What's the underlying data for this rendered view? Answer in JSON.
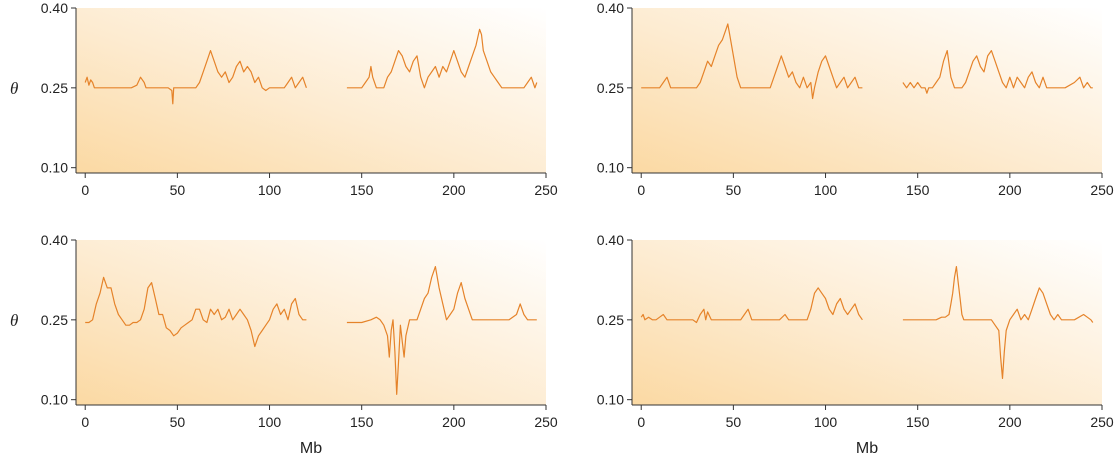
{
  "chart_data": [
    {
      "type": "line",
      "panel": "top-left",
      "xlabel": "",
      "ylabel": "θ",
      "xlim": [
        -5,
        250
      ],
      "ylim": [
        0.09,
        0.4
      ],
      "x_ticks": [
        0,
        50,
        100,
        150,
        200,
        250
      ],
      "x_tick_labels": [
        "0",
        "50",
        "100",
        "150",
        "200",
        "250"
      ],
      "y_ticks": [
        0.1,
        0.25,
        0.4
      ],
      "y_tick_labels": [
        "0.10",
        "0.25",
        "0.40"
      ],
      "series_color": "#e5832a",
      "segments": [
        {
          "x": [
            0,
            1,
            2,
            3,
            4,
            5,
            8,
            10,
            15,
            20,
            25,
            28,
            30,
            32,
            33,
            35,
            38,
            40,
            45,
            47,
            47.5,
            48,
            50,
            55,
            60,
            62,
            64,
            66,
            68,
            70,
            72,
            74,
            76,
            78,
            80,
            82,
            84,
            86,
            88,
            90,
            92,
            94,
            96,
            98,
            100,
            103,
            106,
            108,
            110,
            112,
            114,
            116,
            118,
            120
          ],
          "y": [
            0.26,
            0.27,
            0.255,
            0.265,
            0.26,
            0.25,
            0.25,
            0.25,
            0.25,
            0.25,
            0.25,
            0.255,
            0.27,
            0.26,
            0.25,
            0.25,
            0.25,
            0.25,
            0.25,
            0.245,
            0.22,
            0.25,
            0.25,
            0.25,
            0.25,
            0.26,
            0.28,
            0.3,
            0.32,
            0.3,
            0.28,
            0.27,
            0.28,
            0.26,
            0.27,
            0.29,
            0.3,
            0.28,
            0.29,
            0.28,
            0.26,
            0.27,
            0.25,
            0.245,
            0.25,
            0.25,
            0.25,
            0.25,
            0.26,
            0.27,
            0.25,
            0.26,
            0.27,
            0.25
          ]
        },
        {
          "x": [
            142,
            145,
            148,
            150,
            152,
            154,
            155,
            156,
            158,
            160,
            162,
            164,
            166,
            168,
            170,
            172,
            174,
            176,
            178,
            180,
            182,
            184,
            186,
            188,
            190,
            192,
            194,
            196,
            198,
            200,
            202,
            204,
            206,
            208,
            210,
            212,
            214,
            215,
            216,
            218,
            220,
            222,
            224,
            226,
            230,
            235,
            238,
            240,
            242,
            243,
            244,
            245
          ],
          "y": [
            0.25,
            0.25,
            0.25,
            0.25,
            0.26,
            0.27,
            0.29,
            0.27,
            0.25,
            0.25,
            0.25,
            0.27,
            0.28,
            0.3,
            0.32,
            0.31,
            0.29,
            0.28,
            0.3,
            0.31,
            0.27,
            0.25,
            0.27,
            0.28,
            0.29,
            0.27,
            0.29,
            0.28,
            0.3,
            0.32,
            0.3,
            0.28,
            0.27,
            0.29,
            0.31,
            0.33,
            0.36,
            0.35,
            0.32,
            0.3,
            0.28,
            0.27,
            0.26,
            0.25,
            0.25,
            0.25,
            0.25,
            0.26,
            0.27,
            0.26,
            0.25,
            0.26
          ]
        }
      ]
    },
    {
      "type": "line",
      "panel": "top-right",
      "xlabel": "",
      "ylabel": "",
      "xlim": [
        -5,
        250
      ],
      "ylim": [
        0.09,
        0.4
      ],
      "x_ticks": [
        0,
        50,
        100,
        150,
        200,
        250
      ],
      "x_tick_labels": [
        "0",
        "50",
        "100",
        "150",
        "200",
        "250"
      ],
      "y_ticks": [
        0.1,
        0.25,
        0.4
      ],
      "y_tick_labels": [
        "0.10",
        "0.25",
        "0.40"
      ],
      "series_color": "#e5832a",
      "segments": [
        {
          "x": [
            0,
            5,
            10,
            12,
            14,
            16,
            18,
            20,
            25,
            30,
            32,
            34,
            36,
            38,
            40,
            42,
            44,
            46,
            47,
            48,
            50,
            52,
            54,
            56,
            60,
            65,
            70,
            72,
            74,
            76,
            78,
            80,
            82,
            84,
            86,
            88,
            90,
            92,
            93,
            94,
            96,
            98,
            100,
            102,
            104,
            106,
            108,
            110,
            112,
            114,
            116,
            118,
            120
          ],
          "y": [
            0.25,
            0.25,
            0.25,
            0.26,
            0.27,
            0.25,
            0.25,
            0.25,
            0.25,
            0.25,
            0.26,
            0.28,
            0.3,
            0.29,
            0.31,
            0.33,
            0.34,
            0.36,
            0.37,
            0.35,
            0.31,
            0.27,
            0.25,
            0.25,
            0.25,
            0.25,
            0.25,
            0.27,
            0.29,
            0.31,
            0.29,
            0.27,
            0.28,
            0.26,
            0.25,
            0.27,
            0.25,
            0.26,
            0.23,
            0.25,
            0.28,
            0.3,
            0.31,
            0.29,
            0.27,
            0.25,
            0.26,
            0.27,
            0.25,
            0.26,
            0.27,
            0.25,
            0.25
          ]
        },
        {
          "x": [
            142,
            144,
            146,
            148,
            150,
            152,
            154,
            155,
            156,
            158,
            160,
            162,
            164,
            166,
            168,
            170,
            172,
            174,
            176,
            178,
            180,
            182,
            184,
            186,
            188,
            190,
            192,
            194,
            196,
            198,
            200,
            202,
            204,
            206,
            208,
            210,
            212,
            214,
            216,
            218,
            220,
            225,
            230,
            235,
            238,
            240,
            242,
            244,
            245
          ],
          "y": [
            0.26,
            0.25,
            0.26,
            0.25,
            0.26,
            0.25,
            0.25,
            0.24,
            0.25,
            0.25,
            0.26,
            0.27,
            0.3,
            0.32,
            0.27,
            0.25,
            0.25,
            0.25,
            0.26,
            0.28,
            0.3,
            0.31,
            0.29,
            0.28,
            0.31,
            0.32,
            0.3,
            0.28,
            0.26,
            0.25,
            0.27,
            0.25,
            0.27,
            0.26,
            0.25,
            0.27,
            0.28,
            0.26,
            0.25,
            0.27,
            0.25,
            0.25,
            0.25,
            0.26,
            0.27,
            0.25,
            0.26,
            0.25,
            0.25
          ]
        }
      ]
    },
    {
      "type": "line",
      "panel": "bottom-left",
      "xlabel": "Mb",
      "ylabel": "θ",
      "xlim": [
        -5,
        250
      ],
      "ylim": [
        0.09,
        0.4
      ],
      "x_ticks": [
        0,
        50,
        100,
        150,
        200,
        250
      ],
      "x_tick_labels": [
        "0",
        "50",
        "100",
        "150",
        "200",
        "250"
      ],
      "y_ticks": [
        0.1,
        0.25,
        0.4
      ],
      "y_tick_labels": [
        "0.10",
        "0.25",
        "0.40"
      ],
      "series_color": "#e5832a",
      "segments": [
        {
          "x": [
            0,
            2,
            4,
            6,
            8,
            10,
            12,
            14,
            16,
            18,
            20,
            22,
            24,
            26,
            28,
            30,
            32,
            34,
            36,
            38,
            40,
            42,
            44,
            46,
            48,
            50,
            52,
            54,
            56,
            58,
            60,
            62,
            64,
            66,
            68,
            70,
            72,
            74,
            76,
            78,
            80,
            82,
            84,
            86,
            88,
            90,
            92,
            94,
            96,
            98,
            100,
            102,
            104,
            106,
            108,
            110,
            112,
            114,
            116,
            118,
            120
          ],
          "y": [
            0.245,
            0.245,
            0.25,
            0.28,
            0.3,
            0.33,
            0.31,
            0.31,
            0.28,
            0.26,
            0.25,
            0.24,
            0.24,
            0.245,
            0.245,
            0.25,
            0.27,
            0.31,
            0.32,
            0.29,
            0.26,
            0.26,
            0.235,
            0.23,
            0.22,
            0.225,
            0.235,
            0.24,
            0.245,
            0.25,
            0.27,
            0.27,
            0.25,
            0.245,
            0.27,
            0.26,
            0.27,
            0.25,
            0.255,
            0.27,
            0.25,
            0.26,
            0.27,
            0.26,
            0.25,
            0.23,
            0.2,
            0.22,
            0.23,
            0.24,
            0.25,
            0.27,
            0.28,
            0.26,
            0.27,
            0.25,
            0.28,
            0.29,
            0.26,
            0.25,
            0.25
          ]
        },
        {
          "x": [
            142,
            145,
            150,
            155,
            158,
            160,
            162,
            164,
            165,
            166,
            167,
            168,
            169,
            170,
            171,
            172,
            173,
            174,
            176,
            178,
            180,
            182,
            184,
            186,
            188,
            190,
            192,
            194,
            196,
            198,
            200,
            202,
            204,
            206,
            208,
            210,
            212,
            215,
            220,
            225,
            230,
            234,
            236,
            238,
            240,
            245
          ],
          "y": [
            0.245,
            0.245,
            0.245,
            0.25,
            0.255,
            0.25,
            0.24,
            0.22,
            0.18,
            0.23,
            0.25,
            0.19,
            0.11,
            0.17,
            0.24,
            0.21,
            0.18,
            0.22,
            0.25,
            0.25,
            0.25,
            0.27,
            0.29,
            0.3,
            0.33,
            0.35,
            0.31,
            0.28,
            0.25,
            0.26,
            0.27,
            0.3,
            0.32,
            0.29,
            0.27,
            0.25,
            0.25,
            0.25,
            0.25,
            0.25,
            0.25,
            0.26,
            0.28,
            0.26,
            0.25,
            0.25
          ]
        }
      ]
    },
    {
      "type": "line",
      "panel": "bottom-right",
      "xlabel": "Mb",
      "ylabel": "",
      "xlim": [
        -5,
        250
      ],
      "ylim": [
        0.09,
        0.4
      ],
      "x_ticks": [
        0,
        50,
        100,
        150,
        200,
        250
      ],
      "x_tick_labels": [
        "0",
        "50",
        "100",
        "150",
        "200",
        "250"
      ],
      "y_ticks": [
        0.1,
        0.25,
        0.4
      ],
      "y_tick_labels": [
        "0.10",
        "0.25",
        "0.40"
      ],
      "series_color": "#e5832a",
      "segments": [
        {
          "x": [
            0,
            1,
            2,
            4,
            6,
            8,
            10,
            12,
            14,
            16,
            18,
            20,
            25,
            28,
            30,
            32,
            34,
            35,
            36,
            38,
            40,
            42,
            45,
            50,
            54,
            56,
            58,
            60,
            65,
            70,
            75,
            78,
            80,
            85,
            90,
            92,
            94,
            96,
            98,
            100,
            102,
            104,
            106,
            108,
            110,
            112,
            114,
            116,
            118,
            120
          ],
          "y": [
            0.255,
            0.26,
            0.25,
            0.255,
            0.25,
            0.25,
            0.255,
            0.26,
            0.25,
            0.25,
            0.25,
            0.25,
            0.25,
            0.25,
            0.245,
            0.26,
            0.27,
            0.25,
            0.265,
            0.25,
            0.25,
            0.25,
            0.25,
            0.25,
            0.25,
            0.26,
            0.27,
            0.25,
            0.25,
            0.25,
            0.25,
            0.26,
            0.25,
            0.25,
            0.25,
            0.27,
            0.3,
            0.31,
            0.3,
            0.29,
            0.27,
            0.26,
            0.28,
            0.29,
            0.27,
            0.26,
            0.27,
            0.28,
            0.26,
            0.25
          ]
        },
        {
          "x": [
            142,
            145,
            150,
            155,
            160,
            163,
            165,
            167,
            168,
            169,
            170,
            171,
            172,
            173,
            174,
            175,
            176,
            178,
            180,
            185,
            190,
            192,
            194,
            195,
            196,
            197,
            198,
            200,
            202,
            204,
            206,
            208,
            210,
            212,
            214,
            216,
            218,
            220,
            222,
            224,
            226,
            228,
            230,
            235,
            240,
            242,
            244,
            245
          ],
          "y": [
            0.25,
            0.25,
            0.25,
            0.25,
            0.25,
            0.255,
            0.255,
            0.26,
            0.28,
            0.3,
            0.33,
            0.35,
            0.32,
            0.29,
            0.26,
            0.25,
            0.25,
            0.25,
            0.25,
            0.25,
            0.25,
            0.24,
            0.23,
            0.18,
            0.14,
            0.19,
            0.23,
            0.25,
            0.26,
            0.27,
            0.25,
            0.26,
            0.25,
            0.27,
            0.29,
            0.31,
            0.3,
            0.28,
            0.26,
            0.25,
            0.26,
            0.25,
            0.25,
            0.25,
            0.26,
            0.255,
            0.25,
            0.245
          ]
        }
      ]
    }
  ]
}
